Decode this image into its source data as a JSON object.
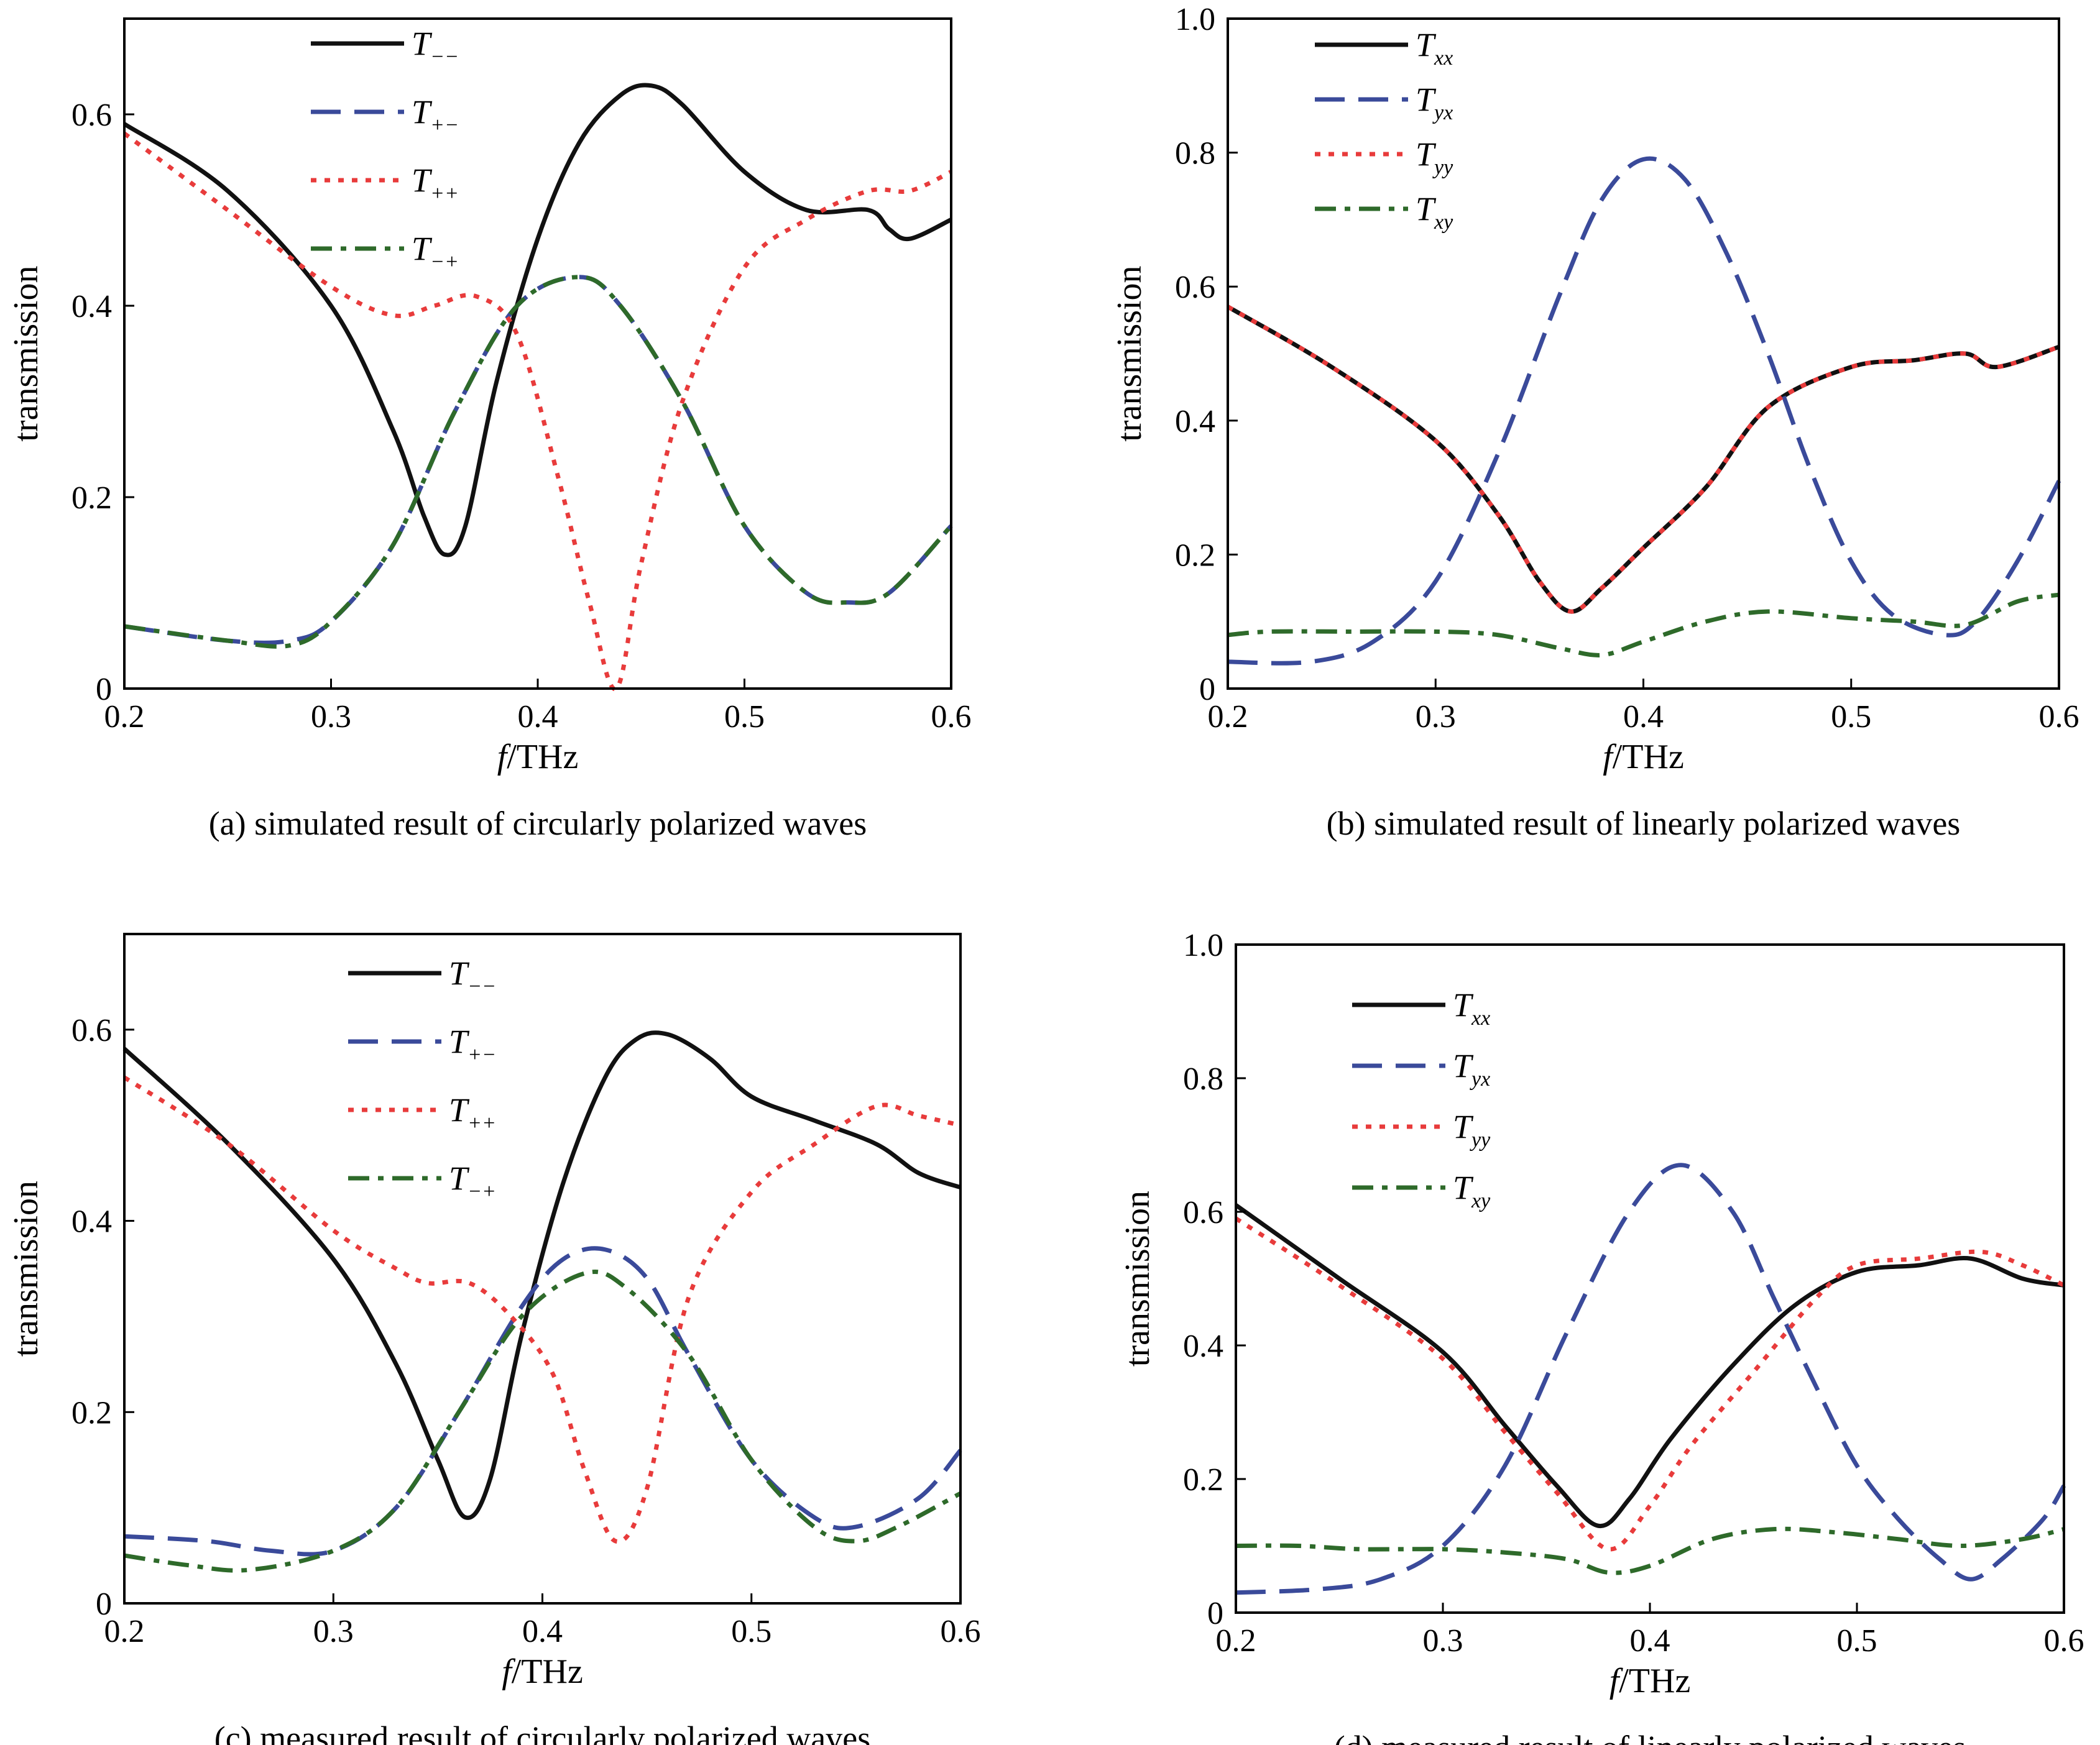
{
  "chart_data": [
    {
      "type": "line",
      "caption": "(a) simulated result of circularly polarized waves",
      "xlabel_italic": "f",
      "xlabel_rest": "/THz",
      "ylabel": "transmission",
      "xlim": [
        0.2,
        0.6
      ],
      "ylim": [
        0,
        0.7
      ],
      "xticks": [
        "0.2",
        "0.3",
        "0.4",
        "0.5",
        "0.6"
      ],
      "yticks": [
        "0",
        "0.2",
        "0.4",
        "0.6"
      ],
      "legend_position": "top-center",
      "grid": false,
      "series": [
        {
          "name_main": "T",
          "name_sub": "−−",
          "color": "#111111",
          "dash": "solid",
          "x": [
            0.2,
            0.25,
            0.3,
            0.33,
            0.345,
            0.355,
            0.365,
            0.38,
            0.4,
            0.42,
            0.44,
            0.455,
            0.47,
            0.5,
            0.53,
            0.56,
            0.57,
            0.58,
            0.6
          ],
          "y": [
            0.59,
            0.52,
            0.4,
            0.27,
            0.18,
            0.14,
            0.17,
            0.32,
            0.47,
            0.57,
            0.62,
            0.63,
            0.61,
            0.54,
            0.5,
            0.5,
            0.48,
            0.47,
            0.49
          ]
        },
        {
          "name_main": "T",
          "name_sub": "+−",
          "color": "#3a4a9a",
          "dash": "dash",
          "x": [
            0.2,
            0.25,
            0.28,
            0.3,
            0.33,
            0.36,
            0.39,
            0.42,
            0.44,
            0.47,
            0.5,
            0.53,
            0.55,
            0.57,
            0.6
          ],
          "y": [
            0.065,
            0.05,
            0.05,
            0.07,
            0.15,
            0.29,
            0.4,
            0.43,
            0.4,
            0.3,
            0.17,
            0.1,
            0.09,
            0.1,
            0.17
          ]
        },
        {
          "name_main": "T",
          "name_sub": "++",
          "color": "#e83b3b",
          "dash": "dot",
          "x": [
            0.2,
            0.25,
            0.3,
            0.33,
            0.35,
            0.37,
            0.39,
            0.41,
            0.425,
            0.438,
            0.45,
            0.47,
            0.5,
            0.53,
            0.56,
            0.58,
            0.6
          ],
          "y": [
            0.58,
            0.5,
            0.42,
            0.39,
            0.4,
            0.41,
            0.37,
            0.22,
            0.09,
            0.0,
            0.13,
            0.3,
            0.44,
            0.49,
            0.52,
            0.52,
            0.54
          ]
        },
        {
          "name_main": "T",
          "name_sub": "−+",
          "color": "#2e6a2a",
          "dash": "dashdot",
          "x": [
            0.2,
            0.25,
            0.28,
            0.3,
            0.33,
            0.36,
            0.39,
            0.42,
            0.44,
            0.47,
            0.5,
            0.53,
            0.55,
            0.57,
            0.6
          ],
          "y": [
            0.065,
            0.05,
            0.045,
            0.07,
            0.15,
            0.29,
            0.4,
            0.43,
            0.4,
            0.3,
            0.17,
            0.1,
            0.09,
            0.1,
            0.17
          ]
        }
      ]
    },
    {
      "type": "line",
      "caption": "(b) simulated result of linearly polarized waves",
      "xlabel_italic": "f",
      "xlabel_rest": "/THz",
      "ylabel": "transmission",
      "xlim": [
        0.2,
        0.6
      ],
      "ylim": [
        0,
        1.0
      ],
      "xticks": [
        "0.2",
        "0.3",
        "0.4",
        "0.5",
        "0.6"
      ],
      "yticks": [
        "0",
        "0.2",
        "0.4",
        "0.6",
        "0.8",
        "1.0"
      ],
      "legend_position": "top-left",
      "grid": false,
      "series": [
        {
          "name_main": "T",
          "name_sub": "xx",
          "color": "#111111",
          "dash": "solid",
          "x": [
            0.2,
            0.25,
            0.3,
            0.33,
            0.35,
            0.365,
            0.38,
            0.4,
            0.43,
            0.46,
            0.5,
            0.53,
            0.555,
            0.57,
            0.6
          ],
          "y": [
            0.57,
            0.48,
            0.37,
            0.26,
            0.16,
            0.115,
            0.15,
            0.21,
            0.3,
            0.42,
            0.48,
            0.49,
            0.5,
            0.48,
            0.51
          ]
        },
        {
          "name_main": "T",
          "name_sub": "yx",
          "color": "#3a4a9a",
          "dash": "dash",
          "x": [
            0.2,
            0.24,
            0.27,
            0.3,
            0.33,
            0.36,
            0.38,
            0.4,
            0.42,
            0.44,
            0.46,
            0.48,
            0.5,
            0.52,
            0.545,
            0.56,
            0.58,
            0.6
          ],
          "y": [
            0.04,
            0.04,
            0.07,
            0.16,
            0.35,
            0.59,
            0.73,
            0.79,
            0.76,
            0.65,
            0.5,
            0.33,
            0.19,
            0.11,
            0.08,
            0.1,
            0.19,
            0.31
          ]
        },
        {
          "name_main": "T",
          "name_sub": "yy",
          "color": "#e83b3b",
          "dash": "dot",
          "x": [
            0.2,
            0.25,
            0.3,
            0.33,
            0.35,
            0.365,
            0.38,
            0.4,
            0.43,
            0.46,
            0.5,
            0.53,
            0.555,
            0.57,
            0.6
          ],
          "y": [
            0.57,
            0.48,
            0.37,
            0.26,
            0.16,
            0.115,
            0.15,
            0.21,
            0.3,
            0.42,
            0.48,
            0.49,
            0.5,
            0.48,
            0.51
          ]
        },
        {
          "name_main": "T",
          "name_sub": "xy",
          "color": "#2e6a2a",
          "dash": "dashdot",
          "x": [
            0.2,
            0.22,
            0.26,
            0.3,
            0.33,
            0.36,
            0.38,
            0.4,
            0.43,
            0.46,
            0.5,
            0.53,
            0.555,
            0.58,
            0.6
          ],
          "y": [
            0.08,
            0.085,
            0.085,
            0.085,
            0.08,
            0.06,
            0.05,
            0.07,
            0.1,
            0.115,
            0.105,
            0.1,
            0.095,
            0.13,
            0.14
          ]
        }
      ]
    },
    {
      "type": "line",
      "caption": "(c) measured result of circularly polarized waves",
      "xlabel_italic": "f",
      "xlabel_rest": "/THz",
      "ylabel": "transmission",
      "xlim": [
        0.2,
        0.6
      ],
      "ylim": [
        0,
        0.7
      ],
      "xticks": [
        "0.2",
        "0.3",
        "0.4",
        "0.5",
        "0.6"
      ],
      "yticks": [
        "0",
        "0.2",
        "0.4",
        "0.6"
      ],
      "legend_position": "top-center",
      "grid": false,
      "series": [
        {
          "name_main": "T",
          "name_sub": "−−",
          "color": "#111111",
          "dash": "solid",
          "x": [
            0.2,
            0.25,
            0.3,
            0.33,
            0.35,
            0.363,
            0.375,
            0.39,
            0.41,
            0.43,
            0.445,
            0.46,
            0.48,
            0.5,
            0.53,
            0.56,
            0.58,
            0.6
          ],
          "y": [
            0.58,
            0.48,
            0.36,
            0.25,
            0.15,
            0.09,
            0.13,
            0.28,
            0.44,
            0.55,
            0.59,
            0.595,
            0.57,
            0.53,
            0.505,
            0.48,
            0.45,
            0.435
          ]
        },
        {
          "name_main": "T",
          "name_sub": "+−",
          "color": "#3a4a9a",
          "dash": "dash",
          "x": [
            0.2,
            0.24,
            0.27,
            0.3,
            0.33,
            0.36,
            0.39,
            0.41,
            0.43,
            0.45,
            0.47,
            0.5,
            0.53,
            0.55,
            0.58,
            0.6
          ],
          "y": [
            0.07,
            0.065,
            0.055,
            0.055,
            0.1,
            0.2,
            0.31,
            0.36,
            0.37,
            0.34,
            0.26,
            0.15,
            0.09,
            0.08,
            0.11,
            0.16
          ]
        },
        {
          "name_main": "T",
          "name_sub": "++",
          "color": "#e83b3b",
          "dash": "dot",
          "x": [
            0.2,
            0.25,
            0.3,
            0.33,
            0.345,
            0.365,
            0.385,
            0.405,
            0.42,
            0.435,
            0.45,
            0.47,
            0.5,
            0.53,
            0.56,
            0.58,
            0.6
          ],
          "y": [
            0.55,
            0.48,
            0.39,
            0.35,
            0.335,
            0.335,
            0.3,
            0.24,
            0.14,
            0.065,
            0.12,
            0.32,
            0.43,
            0.48,
            0.52,
            0.51,
            0.5
          ]
        },
        {
          "name_main": "T",
          "name_sub": "−+",
          "color": "#2e6a2a",
          "dash": "dashdot",
          "x": [
            0.2,
            0.23,
            0.26,
            0.3,
            0.33,
            0.36,
            0.39,
            0.42,
            0.44,
            0.47,
            0.5,
            0.53,
            0.55,
            0.57,
            0.6
          ],
          "y": [
            0.05,
            0.04,
            0.035,
            0.055,
            0.1,
            0.2,
            0.3,
            0.345,
            0.33,
            0.26,
            0.15,
            0.08,
            0.065,
            0.08,
            0.115
          ]
        }
      ]
    },
    {
      "type": "line",
      "caption": "(d) measured result of linearly polarized waves",
      "xlabel_italic": "f",
      "xlabel_rest": "/THz",
      "ylabel": "transmission",
      "xlim": [
        0.2,
        0.6
      ],
      "ylim": [
        0,
        1.0
      ],
      "xticks": [
        "0.2",
        "0.3",
        "0.4",
        "0.5",
        "0.6"
      ],
      "yticks": [
        "0",
        "0.2",
        "0.4",
        "0.6",
        "0.8",
        "1.0"
      ],
      "legend_position": "top-left",
      "grid": false,
      "series": [
        {
          "name_main": "T",
          "name_sub": "xx",
          "color": "#111111",
          "dash": "solid",
          "x": [
            0.2,
            0.25,
            0.3,
            0.33,
            0.355,
            0.375,
            0.39,
            0.41,
            0.44,
            0.47,
            0.5,
            0.53,
            0.555,
            0.58,
            0.6
          ],
          "y": [
            0.61,
            0.5,
            0.39,
            0.28,
            0.19,
            0.13,
            0.17,
            0.26,
            0.37,
            0.46,
            0.51,
            0.52,
            0.53,
            0.5,
            0.49
          ]
        },
        {
          "name_main": "T",
          "name_sub": "yx",
          "color": "#3a4a9a",
          "dash": "dash",
          "x": [
            0.2,
            0.24,
            0.27,
            0.3,
            0.33,
            0.36,
            0.39,
            0.415,
            0.44,
            0.46,
            0.48,
            0.5,
            0.52,
            0.54,
            0.555,
            0.57,
            0.59,
            0.6
          ],
          "y": [
            0.03,
            0.035,
            0.05,
            0.1,
            0.22,
            0.42,
            0.6,
            0.67,
            0.6,
            0.47,
            0.34,
            0.22,
            0.14,
            0.08,
            0.05,
            0.08,
            0.14,
            0.19
          ]
        },
        {
          "name_main": "T",
          "name_sub": "yy",
          "color": "#e83b3b",
          "dash": "dot",
          "x": [
            0.2,
            0.25,
            0.3,
            0.33,
            0.355,
            0.38,
            0.4,
            0.42,
            0.45,
            0.48,
            0.5,
            0.53,
            0.56,
            0.58,
            0.6
          ],
          "y": [
            0.59,
            0.49,
            0.38,
            0.27,
            0.18,
            0.095,
            0.16,
            0.25,
            0.36,
            0.47,
            0.52,
            0.53,
            0.54,
            0.52,
            0.49
          ]
        },
        {
          "name_main": "T",
          "name_sub": "xy",
          "color": "#2e6a2a",
          "dash": "dashdot",
          "x": [
            0.2,
            0.23,
            0.26,
            0.3,
            0.33,
            0.36,
            0.38,
            0.4,
            0.43,
            0.46,
            0.49,
            0.52,
            0.55,
            0.58,
            0.6
          ],
          "y": [
            0.1,
            0.1,
            0.095,
            0.095,
            0.09,
            0.08,
            0.06,
            0.07,
            0.11,
            0.125,
            0.12,
            0.11,
            0.1,
            0.11,
            0.125
          ]
        }
      ]
    }
  ]
}
